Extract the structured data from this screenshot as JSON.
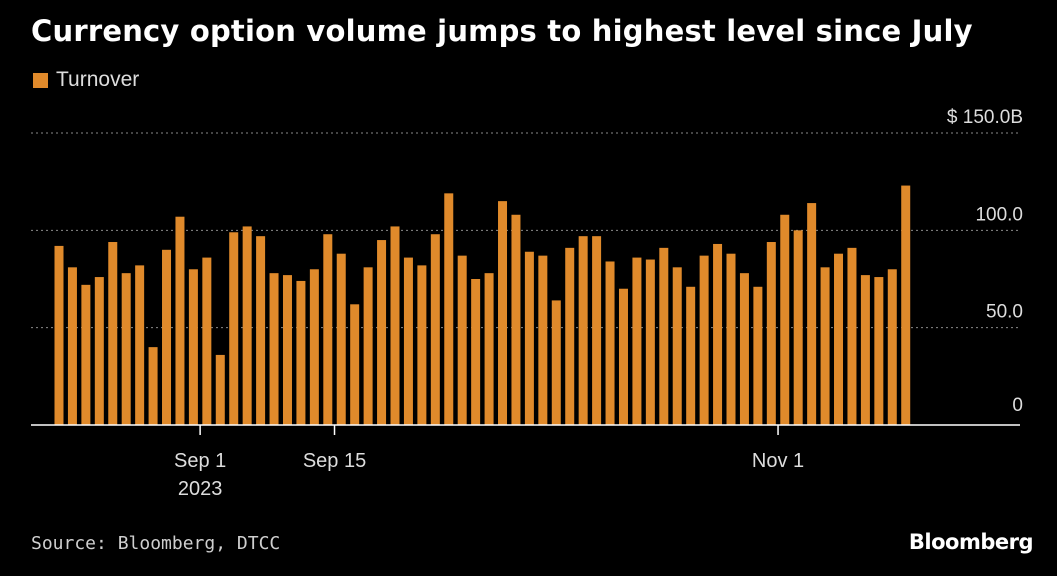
{
  "title": "Currency option volume jumps to highest level since July",
  "source": "Source: Bloomberg, DTCC",
  "logo": "Bloomberg",
  "colors": {
    "bar": "#e08a2b",
    "background": "#000000",
    "grid": "#8a8a8a",
    "text": "#ffffff"
  },
  "chart_data": {
    "type": "bar",
    "legend": [
      "Turnover"
    ],
    "legend_position": "top-left",
    "ylim": [
      0,
      150
    ],
    "y_ticks": [
      {
        "value": 150,
        "label": "$ 150.0B"
      },
      {
        "value": 100,
        "label": "100.0"
      },
      {
        "value": 50,
        "label": "50.0"
      },
      {
        "value": 0,
        "label": "0"
      }
    ],
    "x_ticks": [
      {
        "index": 11,
        "label": "Sep 1",
        "sublabel": "2023"
      },
      {
        "index": 21,
        "label": "Sep 15",
        "sublabel": ""
      },
      {
        "index": 54,
        "label": "Nov 1",
        "sublabel": ""
      }
    ],
    "grid": true,
    "series": [
      {
        "name": "Turnover",
        "values": [
          92,
          81,
          72,
          76,
          94,
          78,
          82,
          40,
          90,
          107,
          80,
          86,
          36,
          99,
          102,
          97,
          78,
          77,
          74,
          80,
          98,
          88,
          62,
          81,
          95,
          102,
          86,
          82,
          98,
          119,
          87,
          75,
          78,
          115,
          108,
          89,
          87,
          64,
          91,
          97,
          97,
          84,
          70,
          86,
          85,
          91,
          81,
          71,
          87,
          93,
          88,
          78,
          71,
          94,
          108,
          100,
          114,
          81,
          88,
          91,
          77,
          76,
          80,
          123
        ]
      }
    ]
  }
}
